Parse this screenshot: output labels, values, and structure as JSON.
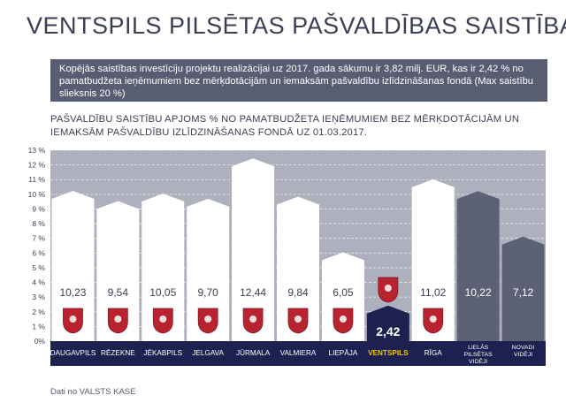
{
  "title": "VENTSPILS PILSĒTAS PAŠVALDĪBAS SAISTĪBAS",
  "info_text": "Kopējās saistības investīciju projektu realizācijai uz 2017. gada sākumu ir 3,82 milj. EUR, kas ir 2,42 % no pamatbudžeta ieņēmumiem bez mērķdotācijām un iemaksām pašvaldību izlīdzināšanas fondā (Max saistību slieksnis 20 %)",
  "source": "Dati no VALSTS KASE",
  "colors": {
    "plot_bg": "#aeb0bd",
    "axis_bar": "#1c2150",
    "highlight_bar": "#1c2150",
    "aggregate_bar": "#5c6175",
    "highlight_label": "#f2c500"
  },
  "chart_data": {
    "type": "bar",
    "title": "PAŠVALDĪBU SAISTĪBU APJOMS % NO PAMATBUDŽETA IEŅĒMUMIEM BEZ MĒRĶDOTĀCIJĀM UN IEMAKSĀM PAŠVALDĪBU IZLĪDZINĀŠANAS FONDĀ UZ 01.03.2017.",
    "categories": [
      "DAUGAVPILS",
      "RĒZEKNE",
      "JĒKABPILS",
      "JELGAVA",
      "JŪRMALA",
      "VALMIERA",
      "LIEPĀJA",
      "VENTSPILS",
      "RĪGA",
      "LIELĀS PILSĒTAS VIDĒJI",
      "NOVADI VIDĒJI"
    ],
    "values": [
      10.23,
      9.54,
      10.05,
      9.7,
      12.44,
      9.84,
      6.05,
      2.42,
      11.02,
      10.22,
      7.12
    ],
    "value_labels": [
      "10,23",
      "9,54",
      "10,05",
      "9,70",
      "12,44",
      "9,84",
      "6,05",
      "2,42",
      "11,02",
      "10,22",
      "7,12"
    ],
    "highlight": "VENTSPILS",
    "aggregate": [
      "LIELĀS PILSĒTAS VIDĒJI",
      "NOVADI VIDĒJI"
    ],
    "ylim": [
      0,
      13
    ],
    "yticks": [
      "0%",
      "1 %",
      "2 %",
      "3 %",
      "4 %",
      "5 %",
      "6 %",
      "7 %",
      "8 %",
      "9 %",
      "10 %",
      "11 %",
      "12 %",
      "13 %"
    ],
    "xlabel": "",
    "ylabel": "",
    "grid": true,
    "legend": "none"
  }
}
